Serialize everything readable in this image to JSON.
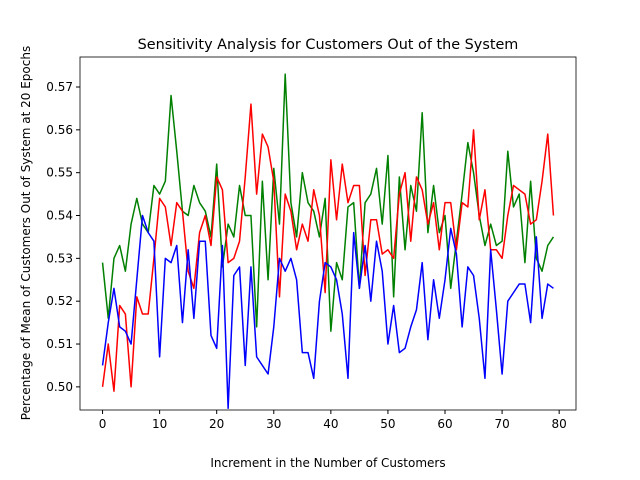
{
  "chart_data": {
    "type": "line",
    "title": "Sensitivity Analysis for Customers Out of the System",
    "x_label": "Increment in the Number of Customers",
    "y_label": "Percentage of Mean of Customers Out of System at 20 Epochs",
    "x": [
      0,
      1,
      2,
      3,
      4,
      5,
      6,
      7,
      8,
      9,
      10,
      11,
      12,
      13,
      14,
      15,
      16,
      17,
      18,
      19,
      20,
      21,
      22,
      23,
      24,
      25,
      26,
      27,
      28,
      29,
      30,
      31,
      32,
      33,
      34,
      35,
      36,
      37,
      38,
      39,
      40,
      41,
      42,
      43,
      44,
      45,
      46,
      47,
      48,
      49,
      50,
      51,
      52,
      53,
      54,
      55,
      56,
      57,
      58,
      59,
      60,
      61,
      62,
      63,
      64,
      65,
      66,
      67,
      68,
      69,
      70,
      71,
      72,
      73,
      74,
      75,
      76,
      77,
      78,
      79
    ],
    "series": [
      {
        "color": "#008000",
        "values": [
          0.529,
          0.516,
          0.53,
          0.533,
          0.527,
          0.538,
          0.544,
          0.538,
          0.536,
          0.547,
          0.545,
          0.548,
          0.568,
          0.555,
          0.541,
          0.54,
          0.547,
          0.543,
          0.541,
          0.535,
          0.552,
          0.528,
          0.538,
          0.535,
          0.547,
          0.54,
          0.54,
          0.514,
          0.548,
          0.525,
          0.551,
          0.538,
          0.573,
          0.543,
          0.535,
          0.55,
          0.543,
          0.541,
          0.535,
          0.544,
          0.513,
          0.529,
          0.525,
          0.542,
          0.543,
          0.523,
          0.543,
          0.545,
          0.551,
          0.538,
          0.554,
          0.521,
          0.549,
          0.532,
          0.547,
          0.541,
          0.564,
          0.536,
          0.547,
          0.536,
          0.54,
          0.523,
          0.534,
          0.545,
          0.557,
          0.55,
          0.54,
          0.533,
          0.538,
          0.533,
          0.534,
          0.555,
          0.542,
          0.545,
          0.529,
          0.548,
          0.53,
          0.527,
          0.533,
          0.535
        ]
      },
      {
        "color": "#ff0000",
        "values": [
          0.5,
          0.51,
          0.499,
          0.519,
          0.517,
          0.5,
          0.521,
          0.517,
          0.517,
          0.53,
          0.544,
          0.542,
          0.533,
          0.543,
          0.541,
          0.527,
          0.523,
          0.536,
          0.54,
          0.533,
          0.549,
          0.546,
          0.529,
          0.53,
          0.534,
          0.549,
          0.566,
          0.545,
          0.559,
          0.556,
          0.548,
          0.521,
          0.545,
          0.541,
          0.532,
          0.538,
          0.534,
          0.546,
          0.54,
          0.522,
          0.553,
          0.539,
          0.552,
          0.543,
          0.547,
          0.547,
          0.526,
          0.539,
          0.539,
          0.531,
          0.532,
          0.53,
          0.545,
          0.55,
          0.534,
          0.549,
          0.546,
          0.538,
          0.543,
          0.532,
          0.543,
          0.543,
          0.532,
          0.543,
          0.542,
          0.56,
          0.539,
          0.546,
          0.532,
          0.532,
          0.53,
          0.54,
          0.547,
          0.546,
          0.545,
          0.538,
          0.539,
          0.548,
          0.559,
          0.54
        ]
      },
      {
        "color": "#0000ff",
        "values": [
          0.505,
          0.515,
          0.523,
          0.514,
          0.513,
          0.51,
          0.525,
          0.54,
          0.536,
          0.534,
          0.507,
          0.53,
          0.529,
          0.533,
          0.515,
          0.532,
          0.516,
          0.534,
          0.534,
          0.512,
          0.509,
          0.533,
          0.495,
          0.526,
          0.528,
          0.505,
          0.528,
          0.507,
          0.505,
          0.503,
          0.514,
          0.53,
          0.527,
          0.53,
          0.525,
          0.508,
          0.508,
          0.502,
          0.52,
          0.529,
          0.528,
          0.525,
          0.517,
          0.502,
          0.536,
          0.523,
          0.533,
          0.52,
          0.534,
          0.527,
          0.51,
          0.519,
          0.508,
          0.509,
          0.514,
          0.518,
          0.529,
          0.511,
          0.525,
          0.516,
          0.525,
          0.537,
          0.531,
          0.514,
          0.528,
          0.526,
          0.516,
          0.502,
          0.532,
          0.518,
          0.503,
          0.52,
          0.522,
          0.524,
          0.524,
          0.515,
          0.535,
          0.516,
          0.524,
          0.523
        ]
      }
    ],
    "xlim": [
      -3.95,
      82.95
    ],
    "xticks": [
      0,
      10,
      20,
      30,
      40,
      50,
      60,
      70,
      80
    ],
    "ylim": [
      0.4946,
      0.577
    ],
    "yticks": [
      {
        "value": 0.5,
        "label": "0.50"
      },
      0.51,
      0.52,
      0.53,
      0.54,
      0.55,
      0.56,
      0.57
    ],
    "grid": false
  }
}
